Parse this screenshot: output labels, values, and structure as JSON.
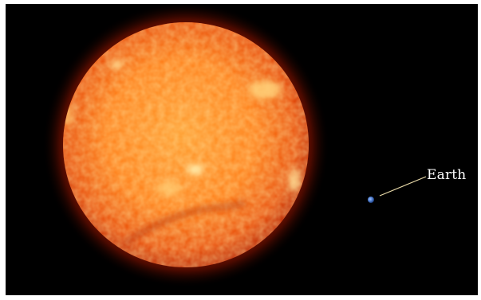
{
  "image": {
    "subject": "sun-and-earth-size-comparison",
    "background_color": "#000000",
    "frame_color": "#ffffff"
  },
  "sun": {
    "icon": "sun-icon",
    "core_color": "#ff8a1e",
    "edge_color": "#c82800",
    "corona_color": "#a01800"
  },
  "earth": {
    "icon": "earth-icon",
    "color": "#4a78c8",
    "label": "Earth",
    "label_color": "#ffffff",
    "leader_line_color": "#e8d9a8"
  }
}
